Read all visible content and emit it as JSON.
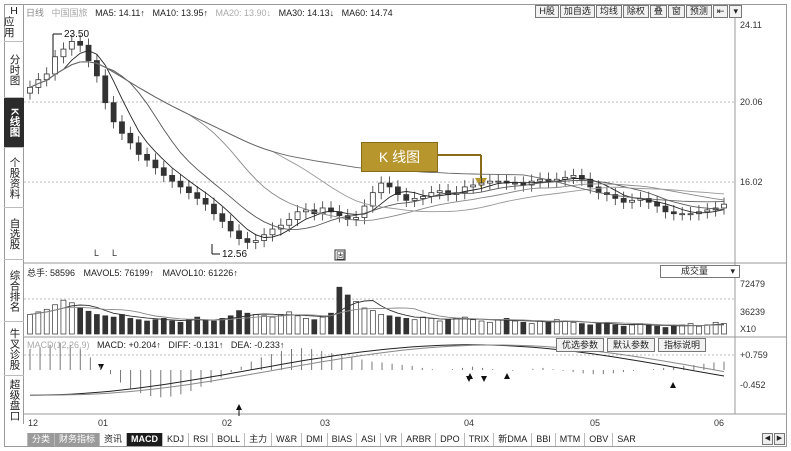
{
  "sidebar": {
    "items": [
      {
        "label": "H",
        "label2": "应用",
        "active": false
      },
      {
        "label": "分时图",
        "active": false
      },
      {
        "label": "K线图",
        "active": true
      },
      {
        "label": "个股资料",
        "active": false
      },
      {
        "label": "自选股",
        "active": false
      },
      {
        "label": "综合排名",
        "active": false
      },
      {
        "label": "牛叉诊股",
        "active": false
      },
      {
        "label": "超级盘口",
        "active": false
      }
    ]
  },
  "main_chart": {
    "period": "日线",
    "stock_name": "中国国旅",
    "ma5": "MA5: 14.11↑",
    "ma10": "MA10: 13.95↑",
    "ma20": "MA20: 13.90↓",
    "ma30": "MA30: 14.13↓",
    "ma60": "MA60: 14.74",
    "y_ticks": [
      "24.11",
      "20.06",
      "16.02"
    ],
    "high_label": "23.50",
    "low_label": "12.56",
    "marker_L1": "L",
    "marker_L2": "L",
    "marker_box": "固"
  },
  "toolbar": {
    "buttons": [
      "H股",
      "加自选",
      "均线",
      "除权",
      "叠",
      "窗",
      "预测"
    ]
  },
  "callout": {
    "text": "K 线图"
  },
  "volume": {
    "total": "总手: 58596",
    "mavol5": "MAVOL5: 76199↑",
    "mavol10": "MAVOL10: 61226↑",
    "dropdown": "成交量",
    "y_ticks": [
      "72479",
      "36239",
      "X10"
    ]
  },
  "macd": {
    "title": "MACD(12,26,9)",
    "macd": "MACD: +0.204↑",
    "diff": "DIFF: -0.131↑",
    "dea": "DEA: -0.233↑",
    "buttons": [
      "优选参数",
      "默认参数",
      "指标说明"
    ],
    "y_ticks": [
      "+0.759",
      "-0.452"
    ]
  },
  "x_axis": {
    "labels": [
      "12",
      "01",
      "02",
      "03",
      "04",
      "05",
      "06"
    ]
  },
  "tabs": [
    "分类",
    "财务指标",
    "资讯",
    "MACD",
    "KDJ",
    "RSI",
    "BOLL",
    "主力",
    "W&R",
    "DMI",
    "BIAS",
    "ASI",
    "VR",
    "ARBR",
    "DPO",
    "TRIX",
    "新DMA",
    "BBI",
    "MTM",
    "OBV",
    "SAR"
  ],
  "active_tab": "MACD",
  "colors": {
    "up": "#ffffff",
    "down": "#333333",
    "callout": "#b8962e",
    "accent": "#1c1c1c"
  },
  "price_series": [
    20.8,
    21.2,
    21.5,
    22.4,
    22.8,
    23.2,
    23.0,
    22.2,
    21.4,
    20.0,
    19.0,
    18.4,
    17.9,
    17.3,
    17.0,
    16.6,
    16.2,
    15.9,
    15.6,
    15.3,
    15.0,
    14.7,
    14.2,
    13.8,
    13.3,
    12.9,
    12.7,
    12.8,
    13.1,
    13.4,
    13.6,
    13.9,
    14.3,
    14.4,
    14.2,
    14.5,
    14.3,
    14.1,
    13.9,
    14.0,
    14.6,
    15.3,
    15.8,
    15.6,
    15.2,
    14.9,
    15.0,
    15.1,
    15.3,
    15.4,
    15.2,
    15.3,
    15.6,
    15.7,
    15.8,
    15.9,
    15.9,
    15.8,
    15.8,
    15.7,
    15.9,
    16.0,
    15.9,
    16.0,
    16.1,
    16.2,
    16.0,
    15.6,
    15.3,
    15.2,
    15.0,
    14.8,
    14.9,
    15.0,
    14.8,
    14.6,
    14.3,
    14.2,
    14.2,
    14.2,
    14.3,
    14.4,
    14.5,
    14.7
  ],
  "volume_series": [
    30,
    34,
    38,
    45,
    52,
    48,
    40,
    35,
    30,
    28,
    26,
    30,
    24,
    22,
    20,
    22,
    24,
    20,
    18,
    22,
    26,
    22,
    20,
    24,
    28,
    36,
    32,
    30,
    28,
    26,
    30,
    34,
    28,
    24,
    22,
    26,
    32,
    72,
    60,
    50,
    40,
    36,
    30,
    28,
    26,
    24,
    22,
    26,
    24,
    20,
    22,
    24,
    26,
    22,
    20,
    18,
    22,
    24,
    20,
    18,
    16,
    20,
    18,
    22,
    20,
    18,
    16,
    14,
    16,
    18,
    14,
    12,
    14,
    16,
    14,
    12,
    10,
    12,
    14,
    16,
    12,
    14,
    18,
    16
  ],
  "macd_series": [
    0.5,
    0.55,
    0.6,
    0.65,
    0.6,
    0.5,
    0.3,
    0.1,
    -0.1,
    -0.3,
    -0.45,
    -0.55,
    -0.62,
    -0.65,
    -0.63,
    -0.58,
    -0.5,
    -0.4,
    -0.3,
    -0.18,
    -0.05,
    0.08,
    0.2,
    0.3,
    0.38,
    0.45,
    0.5,
    0.52,
    0.5,
    0.45,
    0.4,
    0.35,
    0.3,
    0.25,
    0.2,
    0.18,
    0.15,
    0.12,
    0.1,
    0.05,
    0.02,
    0.0,
    0.02,
    0.05,
    0.08,
    0.05,
    0.02,
    0.0,
    -0.02,
    0.0,
    0.03,
    0.05,
    0.02,
    -0.02,
    -0.05,
    -0.08,
    -0.1,
    -0.1,
    -0.08,
    -0.05,
    -0.02,
    0.0,
    0.02,
    0.05,
    0.08,
    0.1,
    0.12,
    0.15,
    0.18,
    0.2
  ]
}
